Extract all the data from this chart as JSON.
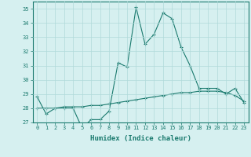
{
  "title": "",
  "xlabel": "Humidex (Indice chaleur)",
  "ylabel": "",
  "x_values": [
    0,
    1,
    2,
    3,
    4,
    5,
    6,
    7,
    8,
    9,
    10,
    11,
    12,
    13,
    14,
    15,
    16,
    17,
    18,
    19,
    20,
    21,
    22,
    23
  ],
  "line1_y": [
    28.8,
    27.6,
    28.0,
    28.0,
    28.0,
    26.6,
    27.2,
    27.2,
    27.8,
    31.2,
    30.9,
    35.1,
    32.5,
    33.2,
    34.7,
    34.3,
    32.3,
    31.0,
    29.4,
    29.4,
    29.4,
    29.0,
    29.4,
    28.4
  ],
  "line2_y": [
    28.0,
    28.0,
    28.0,
    28.1,
    28.1,
    28.1,
    28.2,
    28.2,
    28.3,
    28.4,
    28.5,
    28.6,
    28.7,
    28.8,
    28.9,
    29.0,
    29.1,
    29.1,
    29.2,
    29.2,
    29.2,
    29.1,
    28.9,
    28.5
  ],
  "line_color": "#1a7a6e",
  "background_color": "#d6f0f0",
  "grid_color": "#b0dada",
  "ylim": [
    27,
    35.5
  ],
  "yticks": [
    27,
    28,
    29,
    30,
    31,
    32,
    33,
    34,
    35
  ],
  "xlim": [
    -0.5,
    23.5
  ],
  "figsize": [
    3.2,
    2.0
  ],
  "dpi": 100
}
